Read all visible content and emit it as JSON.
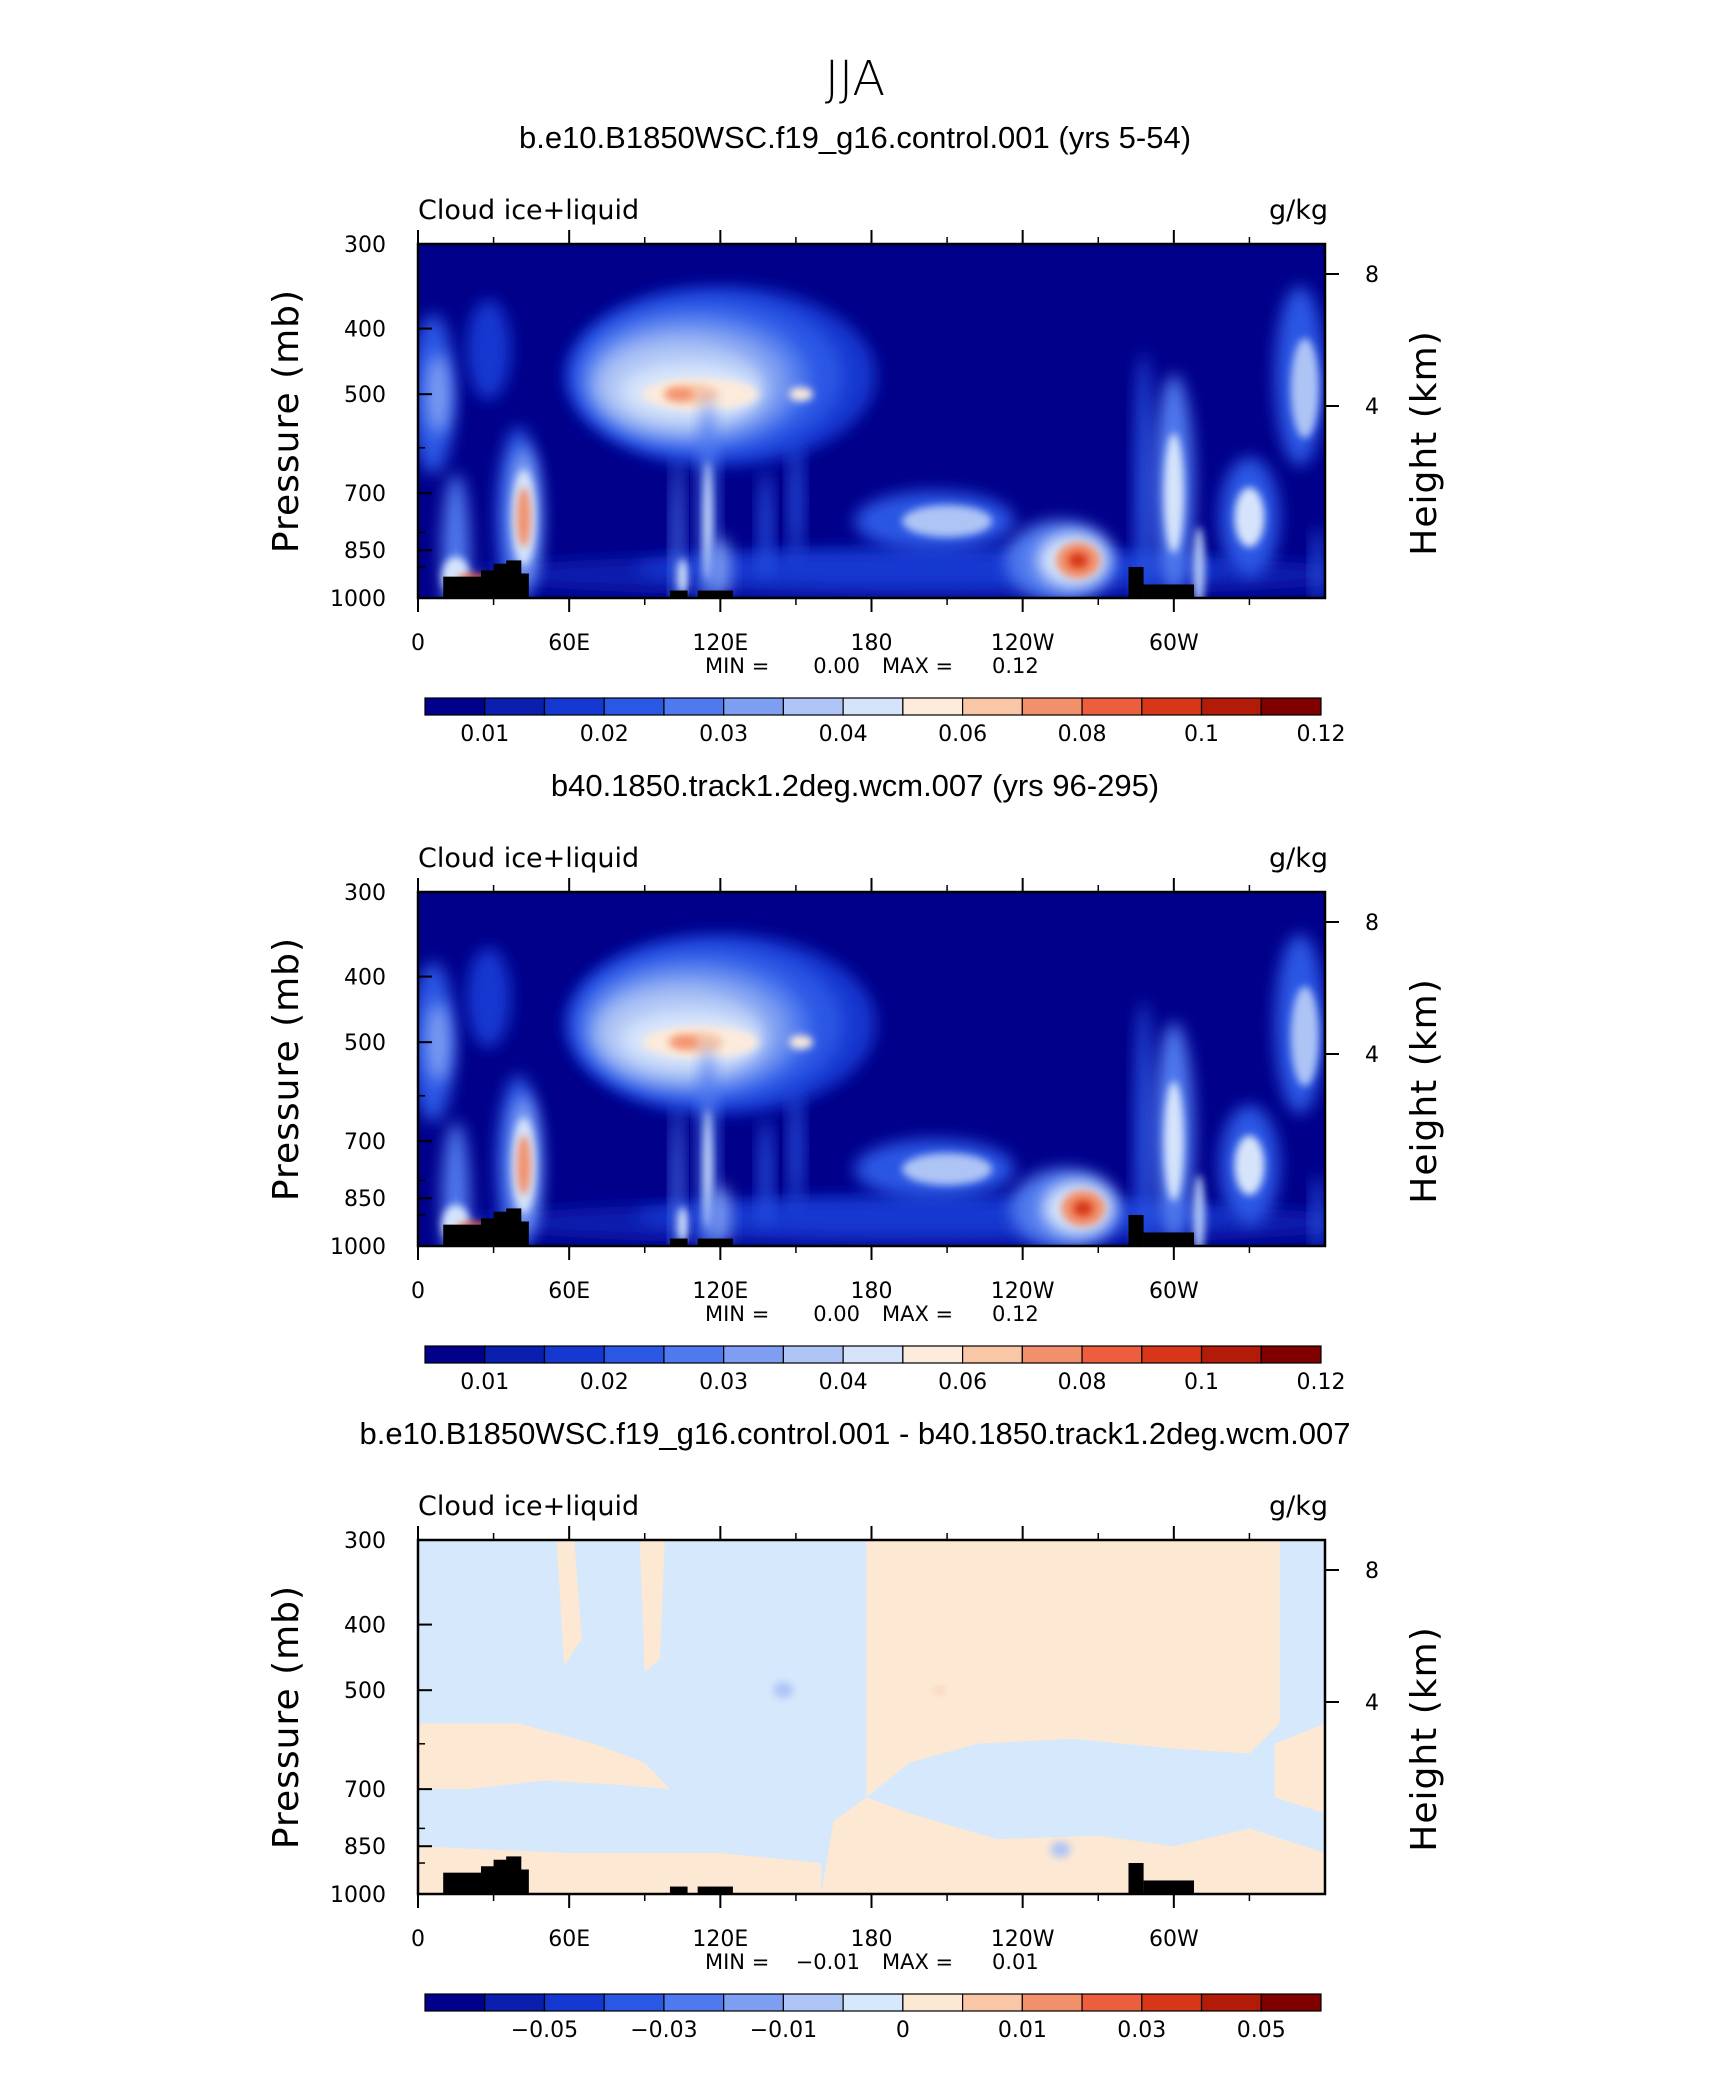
{
  "figure_title": "JJA",
  "chart_data": [
    {
      "type": "heatmap",
      "title": "b.e10.B1850WSC.f19_g16.control.001 (yrs 5-54)",
      "variable_label": "Cloud ice+liquid",
      "units_label": "g/kg",
      "ylabel": "Pressure (mb)",
      "ylabel_right": "Height (km)",
      "ylim": [
        1000,
        300
      ],
      "yticks": [
        "300",
        "400",
        "500",
        "700",
        "850",
        "1000"
      ],
      "yticks_right": [
        "8",
        "4"
      ],
      "xlim": [
        0,
        360
      ],
      "xticks": [
        "0",
        "60E",
        "120E",
        "180",
        "120W",
        "60W"
      ],
      "stats": {
        "min_label": "MIN =",
        "min": "0.00",
        "max_label": "MAX =",
        "max": "0.12"
      },
      "colorbar": {
        "labels": [
          "0.01",
          "0.02",
          "0.03",
          "0.04",
          "0.06",
          "0.08",
          "0.1",
          "0.12"
        ],
        "colors": [
          "#00008a",
          "#0a1fae",
          "#1438d0",
          "#2a57e4",
          "#4f79ee",
          "#7e9ef2",
          "#adc4f5",
          "#d6e4fb",
          "#fdebdc",
          "#f9c6a6",
          "#f3906c",
          "#ec5e3e",
          "#d73718",
          "#b11b08",
          "#800000"
        ]
      },
      "features": [
        {
          "name": "upper-tropo-max-asia",
          "lon": 110,
          "p": 500,
          "value": 0.12
        },
        {
          "name": "low-cloud-max-east-pacific",
          "lon": 260,
          "p": 880,
          "value": 0.12
        },
        {
          "name": "africa-column",
          "lon": 42,
          "p": 760,
          "value": 0.09
        }
      ]
    },
    {
      "type": "heatmap",
      "title": "b40.1850.track1.2deg.wcm.007 (yrs 96-295)",
      "variable_label": "Cloud ice+liquid",
      "units_label": "g/kg",
      "ylabel": "Pressure (mb)",
      "ylabel_right": "Height (km)",
      "ylim": [
        1000,
        300
      ],
      "yticks": [
        "300",
        "400",
        "500",
        "700",
        "850",
        "1000"
      ],
      "yticks_right": [
        "8",
        "4"
      ],
      "xlim": [
        0,
        360
      ],
      "xticks": [
        "0",
        "60E",
        "120E",
        "180",
        "120W",
        "60W"
      ],
      "stats": {
        "min_label": "MIN =",
        "min": "0.00",
        "max_label": "MAX =",
        "max": "0.12"
      },
      "colorbar": {
        "labels": [
          "0.01",
          "0.02",
          "0.03",
          "0.04",
          "0.06",
          "0.08",
          "0.1",
          "0.12"
        ],
        "colors": [
          "#00008a",
          "#0a1fae",
          "#1438d0",
          "#2a57e4",
          "#4f79ee",
          "#7e9ef2",
          "#adc4f5",
          "#d6e4fb",
          "#fdebdc",
          "#f9c6a6",
          "#f3906c",
          "#ec5e3e",
          "#d73718",
          "#b11b08",
          "#800000"
        ]
      },
      "features": [
        {
          "name": "upper-tropo-max-asia",
          "lon": 110,
          "p": 500,
          "value": 0.12
        },
        {
          "name": "low-cloud-max-east-pacific",
          "lon": 262,
          "p": 880,
          "value": 0.12
        },
        {
          "name": "africa-column",
          "lon": 42,
          "p": 760,
          "value": 0.09
        }
      ]
    },
    {
      "type": "heatmap",
      "title": "b.e10.B1850WSC.f19_g16.control.001 - b40.1850.track1.2deg.wcm.007",
      "variable_label": "Cloud ice+liquid",
      "units_label": "g/kg",
      "ylabel": "Pressure (mb)",
      "ylabel_right": "Height (km)",
      "ylim": [
        1000,
        300
      ],
      "yticks": [
        "300",
        "400",
        "500",
        "700",
        "850",
        "1000"
      ],
      "yticks_right": [
        "8",
        "4"
      ],
      "xlim": [
        0,
        360
      ],
      "xticks": [
        "0",
        "60E",
        "120E",
        "180",
        "120W",
        "60W"
      ],
      "stats": {
        "min_label": "MIN =",
        "min": "−0.01",
        "max_label": "MAX =",
        "max": "0.01"
      },
      "colorbar": {
        "labels": [
          "−0.05",
          "−0.03",
          "−0.01",
          "0",
          "0.01",
          "0.03",
          "0.05"
        ],
        "colors": [
          "#00008a",
          "#0a1fae",
          "#1438d0",
          "#2a57e4",
          "#4f79ee",
          "#7e9ef2",
          "#adc4f5",
          "#d6e8fb",
          "#fde8d4",
          "#f9c6a6",
          "#f3906c",
          "#ec5e3e",
          "#d73718",
          "#b11b08",
          "#800000"
        ]
      },
      "features": [
        {
          "name": "neg-diff-west-pacific",
          "lon": 145,
          "p": 500,
          "value": -0.01
        },
        {
          "name": "neg-diff-east-pacific",
          "lon": 255,
          "p": 860,
          "value": -0.01
        },
        {
          "name": "pos-diff-dateline",
          "lon": 207,
          "p": 500,
          "value": 0.01
        }
      ]
    }
  ]
}
